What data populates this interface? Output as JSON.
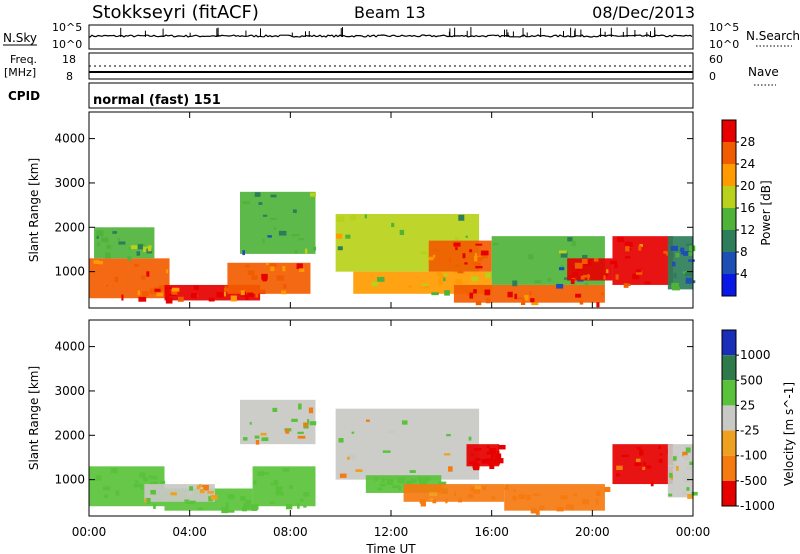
{
  "header": {
    "station": "Stokkseyri (fitACF)",
    "beam": "Beam 13",
    "date": "08/Dec/2013"
  },
  "top_panels": {
    "nsky_label": "N.Sky",
    "nsky_tick_high": "10^5",
    "nsky_tick_low": "10^0",
    "nsearch_label": "N.Search",
    "nsearch_tick_high": "10^5",
    "nsearch_tick_low": "10^0",
    "freq_label": "Freq.",
    "freq_unit": "[MHz]",
    "freq_tick_high": "18",
    "freq_tick_low": "8",
    "nave_label": "Nave",
    "nave_tick_high": "60",
    "nave_tick_low": "0",
    "cpid_label": "CPID",
    "cpid_value": "normal (fast) 151"
  },
  "x_axis": {
    "label": "Time UT",
    "ticks": [
      "00:00",
      "04:00",
      "08:00",
      "12:00",
      "16:00",
      "20:00",
      "00:00"
    ]
  },
  "y_axis": {
    "label": "Slant Range [km]",
    "ticks": [
      "1000",
      "2000",
      "3000",
      "4000"
    ]
  },
  "power_scale": {
    "label": "Power [dB]",
    "ticks": [
      "4",
      "8",
      "12",
      "16",
      "20",
      "24",
      "28"
    ],
    "colors": [
      "#0a18e6",
      "#1e4fb4",
      "#2e7d5a",
      "#4fb33a",
      "#b9d11a",
      "#ff9a00",
      "#f25c00",
      "#e60000"
    ]
  },
  "velocity_scale": {
    "label": "Velocity [m s^-1]",
    "ticks": [
      "1000",
      "500",
      "25",
      "-25",
      "-100",
      "-500",
      "-1000"
    ],
    "colors": [
      "#1a2db8",
      "#2f7a4a",
      "#59c23a",
      "#c8c8c4",
      "#f0a020",
      "#f57a10",
      "#e60000"
    ]
  },
  "chart_data": [
    {
      "type": "heatmap",
      "title": "Beam 13",
      "xlabel": "Time UT",
      "ylabel": "Slant Range [km]",
      "xlim": [
        "00:00",
        "24:00"
      ],
      "ylim": [
        180,
        4600
      ],
      "colorbar": "Power [dB]",
      "colorbar_range": [
        0,
        32
      ],
      "series": [
        {
          "t0": 0.0,
          "t1": 3.2,
          "r0": 400,
          "r1": 1300,
          "value": 27
        },
        {
          "t0": 0.2,
          "t1": 2.6,
          "r0": 1300,
          "r1": 2000,
          "value": 14
        },
        {
          "t0": 3.0,
          "t1": 6.8,
          "r0": 350,
          "r1": 700,
          "value": 28
        },
        {
          "t0": 5.5,
          "t1": 8.8,
          "r0": 500,
          "r1": 1200,
          "value": 24
        },
        {
          "t0": 6.0,
          "t1": 9.0,
          "r0": 1400,
          "r1": 2800,
          "value": 12
        },
        {
          "t0": 9.8,
          "t1": 15.5,
          "r0": 1000,
          "r1": 2300,
          "value": 16
        },
        {
          "t0": 10.5,
          "t1": 16.0,
          "r0": 500,
          "r1": 1000,
          "value": 20
        },
        {
          "t0": 13.5,
          "t1": 16.0,
          "r0": 1000,
          "r1": 1700,
          "value": 27
        },
        {
          "t0": 14.5,
          "t1": 20.5,
          "r0": 300,
          "r1": 700,
          "value": 26
        },
        {
          "t0": 16.0,
          "t1": 20.5,
          "r0": 700,
          "r1": 1800,
          "value": 12
        },
        {
          "t0": 19.0,
          "t1": 20.8,
          "r0": 800,
          "r1": 1300,
          "value": 28
        },
        {
          "t0": 20.8,
          "t1": 23.2,
          "r0": 700,
          "r1": 1800,
          "value": 28
        },
        {
          "t0": 23.0,
          "t1": 24.0,
          "r0": 600,
          "r1": 1800,
          "value": 10
        }
      ]
    },
    {
      "type": "heatmap",
      "xlabel": "Time UT",
      "ylabel": "Slant Range [km]",
      "xlim": [
        "00:00",
        "24:00"
      ],
      "ylim": [
        180,
        4600
      ],
      "colorbar": "Velocity [m s^-1]",
      "series": [
        {
          "t0": 0.0,
          "t1": 3.0,
          "r0": 400,
          "r1": 1300,
          "value": 250
        },
        {
          "t0": 3.0,
          "t1": 6.5,
          "r0": 300,
          "r1": 800,
          "value": 300
        },
        {
          "t0": 2.2,
          "t1": 5.0,
          "r0": 500,
          "r1": 900,
          "value": 0
        },
        {
          "t0": 6.0,
          "t1": 9.0,
          "r0": 1800,
          "r1": 2800,
          "value": 0
        },
        {
          "t0": 6.5,
          "t1": 9.0,
          "r0": 400,
          "r1": 1300,
          "value": 250
        },
        {
          "t0": 9.8,
          "t1": 15.5,
          "r0": 1000,
          "r1": 2600,
          "value": 0
        },
        {
          "t0": 11.0,
          "t1": 14.0,
          "r0": 700,
          "r1": 1100,
          "value": 300
        },
        {
          "t0": 12.5,
          "t1": 16.5,
          "r0": 500,
          "r1": 900,
          "value": -200
        },
        {
          "t0": 15.0,
          "t1": 16.3,
          "r0": 1300,
          "r1": 1800,
          "value": -1000
        },
        {
          "t0": 16.5,
          "t1": 20.5,
          "r0": 300,
          "r1": 900,
          "value": -250
        },
        {
          "t0": 20.8,
          "t1": 23.2,
          "r0": 900,
          "r1": 1800,
          "value": -600
        },
        {
          "t0": 23.0,
          "t1": 24.0,
          "r0": 600,
          "r1": 1800,
          "value": 0
        }
      ]
    }
  ]
}
